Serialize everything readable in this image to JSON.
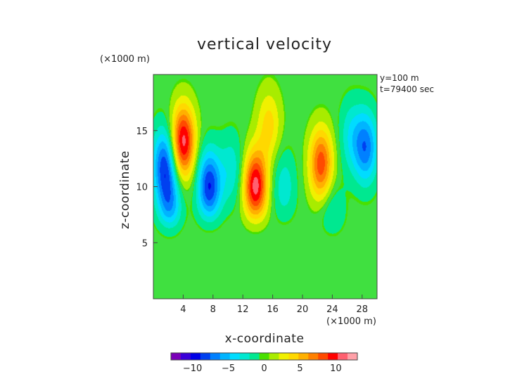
{
  "figure": {
    "title": "vertical velocity",
    "y_unit": "(×1000 m)",
    "x_unit": "(×1000 m)",
    "info_line1": "y=100 m",
    "info_line2": "t=79400 sec"
  },
  "colors": {
    "scale": [
      "#7a00b8",
      "#3a00d8",
      "#0000e6",
      "#0040f0",
      "#0080ff",
      "#00b4ff",
      "#00dcff",
      "#00e8d0",
      "#00e890",
      "#48e000",
      "#a8ec00",
      "#f0f000",
      "#ffd800",
      "#ffb000",
      "#ff8000",
      "#ff4a00",
      "#ff0000",
      "#ff6070",
      "#ffa0a8"
    ],
    "background": "#ffffff",
    "zero_fill": "#40e040"
  },
  "chart_data": {
    "type": "heatmap",
    "title": "vertical velocity",
    "xlabel": "x-coordinate",
    "ylabel": "z-coordinate",
    "xlim": [
      0,
      30
    ],
    "ylim": [
      0,
      20
    ],
    "xticks": [
      4,
      8,
      12,
      16,
      20,
      24,
      28
    ],
    "yticks": [
      5,
      10,
      15
    ],
    "colorbar": {
      "range": [
        -13,
        13
      ],
      "ticks": [
        -10,
        -5,
        0,
        5,
        10
      ]
    },
    "features": [
      {
        "x": 4.0,
        "z": 14.0,
        "value": 11.0
      },
      {
        "x": 1.5,
        "z": 12.0,
        "value": -8.0
      },
      {
        "x": 2.2,
        "z": 8.0,
        "value": -6.0
      },
      {
        "x": 7.5,
        "z": 10.0,
        "value": -9.0
      },
      {
        "x": 10.5,
        "z": 11.5,
        "value": -3.0
      },
      {
        "x": 13.7,
        "z": 10.0,
        "value": 11.0
      },
      {
        "x": 15.5,
        "z": 15.5,
        "value": 4.0
      },
      {
        "x": 17.5,
        "z": 10.0,
        "value": -3.0
      },
      {
        "x": 22.5,
        "z": 12.0,
        "value": 8.5
      },
      {
        "x": 28.5,
        "z": 13.5,
        "value": -7.0
      },
      {
        "x": 26.5,
        "z": 14.5,
        "value": -3.0
      },
      {
        "x": 24.0,
        "z": 7.0,
        "value": -3.0
      }
    ]
  }
}
